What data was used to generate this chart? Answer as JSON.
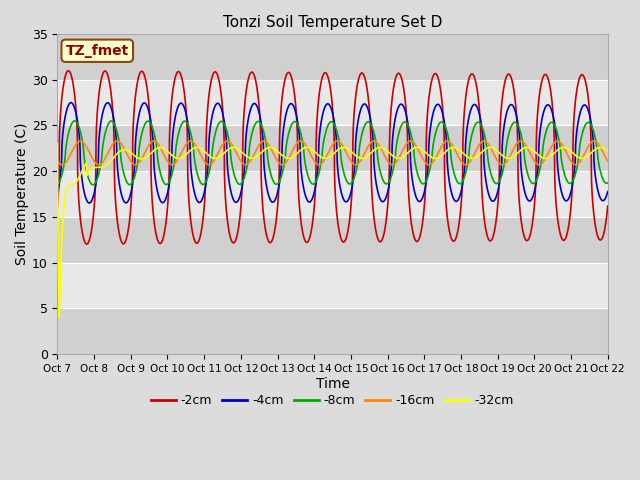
{
  "title": "Tonzi Soil Temperature Set D",
  "xlabel": "Time",
  "ylabel": "Soil Temperature (C)",
  "ylim": [
    0,
    35
  ],
  "legend_label": "TZ_fmet",
  "series_order": [
    "-2cm",
    "-4cm",
    "-8cm",
    "-16cm",
    "-32cm"
  ],
  "colors": {
    "-2cm": "#cc0000",
    "-4cm": "#0000cc",
    "-8cm": "#00aa00",
    "-16cm": "#ff8800",
    "-32cm": "#ffff00"
  },
  "tick_labels": [
    "Oct 7",
    "Oct 8",
    "Oct 9",
    "Oct 10",
    "Oct 11",
    "Oct 12",
    "Oct 13",
    "Oct 14",
    "Oct 15",
    "Oct 16",
    "Oct 17",
    "Oct 18",
    "Oct 19",
    "Oct 20",
    "Oct 21",
    "Oct 22"
  ],
  "bg_color": "#dcdcdc",
  "plot_bg_light": "#e8e8e8",
  "plot_bg_dark": "#d0d0d0",
  "grid_color": "#ffffff",
  "annotation_box_color": "#ffffcc",
  "annotation_border": "#8B4513",
  "annotation_text_color": "#8B0000",
  "lw": 1.2
}
